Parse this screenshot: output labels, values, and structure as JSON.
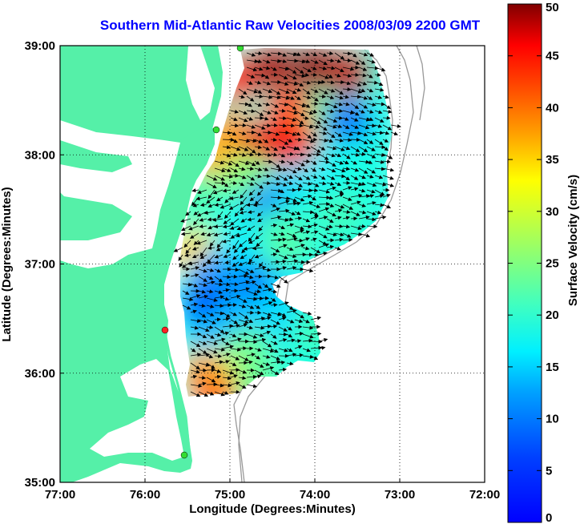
{
  "chart_data": {
    "type": "heatmap",
    "title": "Southern Mid-Atlantic Raw Velocities 2008/03/09 2200 GMT",
    "xlabel": "Longitude (Degrees:Minutes)",
    "ylabel": "Latitude (Degrees:Minutes)",
    "x_ticks": [
      "77:00",
      "76:00",
      "75:00",
      "74:00",
      "73:00",
      "72:00"
    ],
    "y_ticks": [
      "39:00",
      "38:00",
      "37:00",
      "36:00",
      "35:00"
    ],
    "xlim": [
      -77,
      -72
    ],
    "ylim": [
      35,
      39
    ],
    "grid": true,
    "colorbar": {
      "label": "Surface Velocity (cm/s)",
      "ticks": [
        "50",
        "45",
        "40",
        "35",
        "30",
        "25",
        "20",
        "15",
        "10",
        "5",
        "0"
      ],
      "range": [
        0,
        50
      ],
      "colormap": "jet"
    },
    "land_color": "#55f0a8",
    "field_points": [
      {
        "lon": -74.9,
        "lat": 38.7,
        "v": 42
      },
      {
        "lon": -74.5,
        "lat": 38.8,
        "v": 48
      },
      {
        "lon": -74.0,
        "lat": 38.8,
        "v": 49
      },
      {
        "lon": -73.6,
        "lat": 38.75,
        "v": 47
      },
      {
        "lon": -74.3,
        "lat": 38.4,
        "v": 40
      },
      {
        "lon": -73.8,
        "lat": 38.35,
        "v": 24
      },
      {
        "lon": -73.6,
        "lat": 38.3,
        "v": 12
      },
      {
        "lon": -75.0,
        "lat": 38.2,
        "v": 36
      },
      {
        "lon": -74.6,
        "lat": 38.1,
        "v": 45
      },
      {
        "lon": -74.2,
        "lat": 38.05,
        "v": 44
      },
      {
        "lon": -75.2,
        "lat": 38.0,
        "v": 35
      },
      {
        "lon": -73.8,
        "lat": 37.9,
        "v": 18
      },
      {
        "lon": -73.5,
        "lat": 37.9,
        "v": 20
      },
      {
        "lon": -74.8,
        "lat": 37.8,
        "v": 25
      },
      {
        "lon": -74.3,
        "lat": 37.7,
        "v": 17
      },
      {
        "lon": -75.3,
        "lat": 37.6,
        "v": 23
      },
      {
        "lon": -74.6,
        "lat": 37.5,
        "v": 12
      },
      {
        "lon": -74.0,
        "lat": 37.5,
        "v": 20
      },
      {
        "lon": -73.7,
        "lat": 37.45,
        "v": 22
      },
      {
        "lon": -75.0,
        "lat": 37.4,
        "v": 20
      },
      {
        "lon": -74.4,
        "lat": 37.3,
        "v": 22
      },
      {
        "lon": -75.4,
        "lat": 37.1,
        "v": 33
      },
      {
        "lon": -74.9,
        "lat": 37.1,
        "v": 18
      },
      {
        "lon": -74.3,
        "lat": 37.1,
        "v": 23
      },
      {
        "lon": -75.2,
        "lat": 36.9,
        "v": 14
      },
      {
        "lon": -74.7,
        "lat": 36.8,
        "v": 12
      },
      {
        "lon": -74.2,
        "lat": 36.8,
        "v": 18
      },
      {
        "lon": -75.3,
        "lat": 36.6,
        "v": 9
      },
      {
        "lon": -74.9,
        "lat": 36.5,
        "v": 15
      },
      {
        "lon": -74.5,
        "lat": 36.5,
        "v": 17
      },
      {
        "lon": -74.0,
        "lat": 36.4,
        "v": 22
      },
      {
        "lon": -75.2,
        "lat": 36.3,
        "v": 16
      },
      {
        "lon": -74.8,
        "lat": 36.2,
        "v": 24
      },
      {
        "lon": -75.3,
        "lat": 36.0,
        "v": 35
      },
      {
        "lon": -75.0,
        "lat": 35.95,
        "v": 30
      },
      {
        "lon": -74.7,
        "lat": 35.95,
        "v": 24
      },
      {
        "lon": -75.2,
        "lat": 35.85,
        "v": 38
      }
    ]
  },
  "colors": {
    "title": "#0000ff",
    "frame": "#000000",
    "grid": "#000000",
    "bathymetry": "#999999",
    "station_green": "#33dd33",
    "station_red": "#ff2222"
  }
}
